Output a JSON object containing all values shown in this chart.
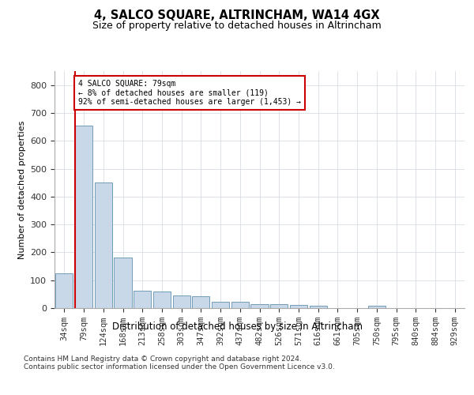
{
  "title": "4, SALCO SQUARE, ALTRINCHAM, WA14 4GX",
  "subtitle": "Size of property relative to detached houses in Altrincham",
  "xlabel": "Distribution of detached houses by size in Altrincham",
  "ylabel": "Number of detached properties",
  "bar_labels": [
    "34sqm",
    "79sqm",
    "124sqm",
    "168sqm",
    "213sqm",
    "258sqm",
    "303sqm",
    "347sqm",
    "392sqm",
    "437sqm",
    "482sqm",
    "526sqm",
    "571sqm",
    "616sqm",
    "661sqm",
    "705sqm",
    "750sqm",
    "795sqm",
    "840sqm",
    "884sqm",
    "929sqm"
  ],
  "bar_values": [
    125,
    655,
    450,
    182,
    62,
    60,
    45,
    43,
    22,
    22,
    15,
    13,
    10,
    8,
    0,
    0,
    8,
    0,
    0,
    0,
    0
  ],
  "bar_color": "#c8d8e8",
  "bar_edge_color": "#6090b0",
  "marker_index": 1,
  "marker_color": "#cc0000",
  "annotation_line1": "4 SALCO SQUARE: 79sqm",
  "annotation_line2": "← 8% of detached houses are smaller (119)",
  "annotation_line3": "92% of semi-detached houses are larger (1,453) →",
  "annotation_box_color": "#ffffff",
  "annotation_box_edge": "#cc0000",
  "ylim": [
    0,
    850
  ],
  "yticks": [
    0,
    100,
    200,
    300,
    400,
    500,
    600,
    700,
    800
  ],
  "background_color": "#ffffff",
  "footer": "Contains HM Land Registry data © Crown copyright and database right 2024.\nContains public sector information licensed under the Open Government Licence v3.0.",
  "grid_color": "#d0d8e0"
}
